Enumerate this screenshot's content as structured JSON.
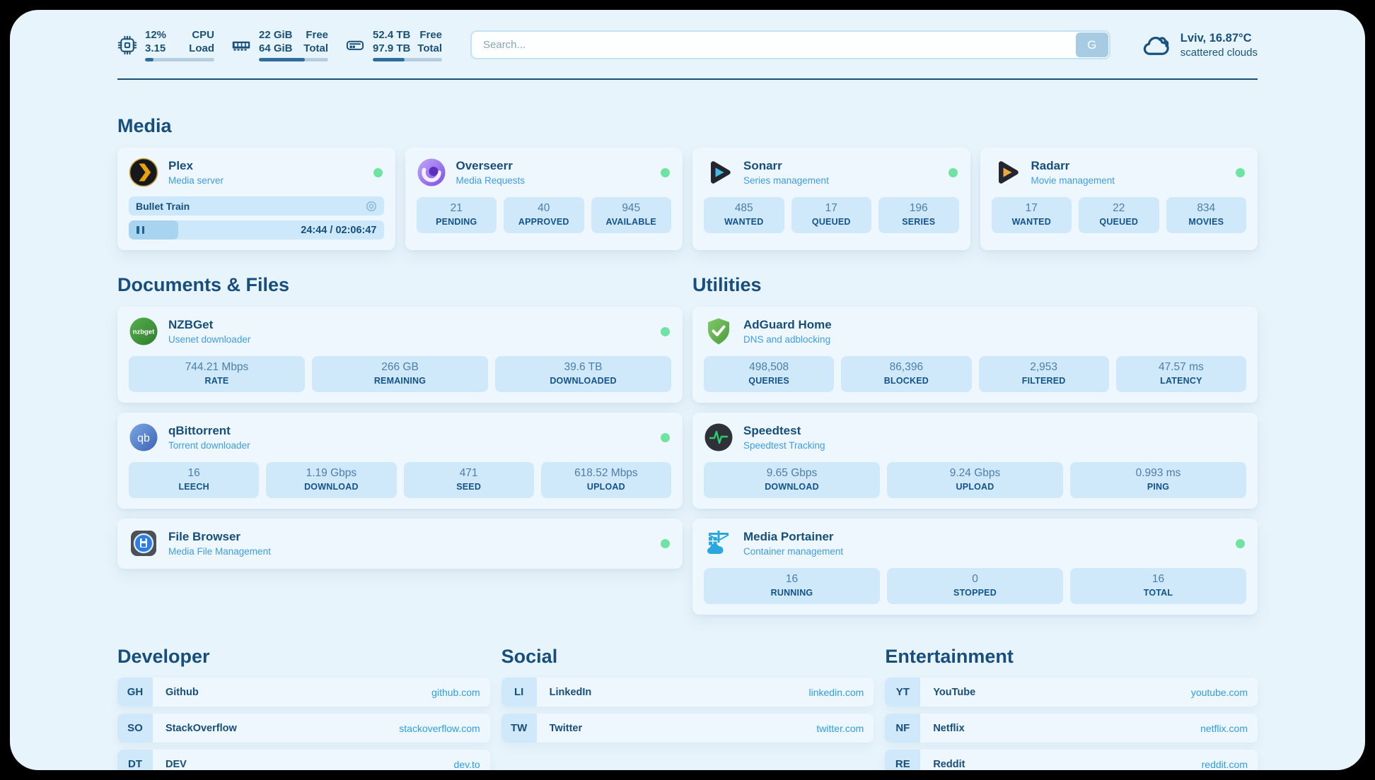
{
  "topbar": {
    "cpu": {
      "percent": "12%",
      "load": "3.15",
      "label_line1": "CPU",
      "label_line2": "Load",
      "progress_pct": 12
    },
    "memory": {
      "free": "22 GiB",
      "total": "64 GiB",
      "label_line1": "Free",
      "label_line2": "Total",
      "progress_pct": 66
    },
    "storage": {
      "free": "52.4 TB",
      "total": "97.9 TB",
      "label_line1": "Free",
      "label_line2": "Total",
      "progress_pct": 46
    },
    "search": {
      "placeholder": "Search...",
      "button_label": "G"
    },
    "weather": {
      "location_temp": "Lviv, 16.87°C",
      "condition": "scattered clouds"
    }
  },
  "media": {
    "heading": "Media",
    "plex": {
      "title": "Plex",
      "subtitle": "Media server",
      "status": "online",
      "now_playing": "Bullet Train",
      "time": "24:44 / 02:06:47",
      "progress_pct": 19.5,
      "playback_state": "paused"
    },
    "overseerr": {
      "title": "Overseerr",
      "subtitle": "Media Requests",
      "status": "online",
      "stats": [
        {
          "value": "21",
          "label": "PENDING"
        },
        {
          "value": "40",
          "label": "APPROVED"
        },
        {
          "value": "945",
          "label": "AVAILABLE"
        }
      ]
    },
    "sonarr": {
      "title": "Sonarr",
      "subtitle": "Series management",
      "status": "online",
      "stats": [
        {
          "value": "485",
          "label": "WANTED"
        },
        {
          "value": "17",
          "label": "QUEUED"
        },
        {
          "value": "196",
          "label": "SERIES"
        }
      ]
    },
    "radarr": {
      "title": "Radarr",
      "subtitle": "Movie management",
      "status": "online",
      "stats": [
        {
          "value": "17",
          "label": "WANTED"
        },
        {
          "value": "22",
          "label": "QUEUED"
        },
        {
          "value": "834",
          "label": "MOVIES"
        }
      ]
    }
  },
  "documents": {
    "heading": "Documents & Files",
    "nzbget": {
      "title": "NZBGet",
      "subtitle": "Usenet downloader",
      "status": "online",
      "stats": [
        {
          "value": "744.21 Mbps",
          "label": "RATE"
        },
        {
          "value": "266 GB",
          "label": "REMAINING"
        },
        {
          "value": "39.6 TB",
          "label": "DOWNLOADED"
        }
      ]
    },
    "qbittorrent": {
      "title": "qBittorrent",
      "subtitle": "Torrent downloader",
      "status": "online",
      "stats": [
        {
          "value": "16",
          "label": "LEECH"
        },
        {
          "value": "1.19 Gbps",
          "label": "DOWNLOAD"
        },
        {
          "value": "471",
          "label": "SEED"
        },
        {
          "value": "618.52 Mbps",
          "label": "UPLOAD"
        }
      ]
    },
    "filebrowser": {
      "title": "File Browser",
      "subtitle": "Media File Management",
      "status": "online"
    }
  },
  "utilities": {
    "heading": "Utilities",
    "adguard": {
      "title": "AdGuard Home",
      "subtitle": "DNS and adblocking",
      "stats": [
        {
          "value": "498,508",
          "label": "QUERIES"
        },
        {
          "value": "86,396",
          "label": "BLOCKED"
        },
        {
          "value": "2,953",
          "label": "FILTERED"
        },
        {
          "value": "47.57 ms",
          "label": "LATENCY"
        }
      ]
    },
    "speedtest": {
      "title": "Speedtest",
      "subtitle": "Speedtest Tracking",
      "stats": [
        {
          "value": "9.65 Gbps",
          "label": "DOWNLOAD"
        },
        {
          "value": "9.24 Gbps",
          "label": "UPLOAD"
        },
        {
          "value": "0.993 ms",
          "label": "PING"
        }
      ]
    },
    "portainer": {
      "title": "Media Portainer",
      "subtitle": "Container management",
      "status": "online",
      "stats": [
        {
          "value": "16",
          "label": "RUNNING"
        },
        {
          "value": "0",
          "label": "STOPPED"
        },
        {
          "value": "16",
          "label": "TOTAL"
        }
      ]
    }
  },
  "links": {
    "developer": {
      "heading": "Developer",
      "items": [
        {
          "abbr": "GH",
          "name": "Github",
          "url": "github.com"
        },
        {
          "abbr": "SO",
          "name": "StackOverflow",
          "url": "stackoverflow.com"
        },
        {
          "abbr": "DT",
          "name": "DEV",
          "url": "dev.to"
        }
      ]
    },
    "social": {
      "heading": "Social",
      "items": [
        {
          "abbr": "LI",
          "name": "LinkedIn",
          "url": "linkedin.com"
        },
        {
          "abbr": "TW",
          "name": "Twitter",
          "url": "twitter.com"
        }
      ]
    },
    "entertainment": {
      "heading": "Entertainment",
      "items": [
        {
          "abbr": "YT",
          "name": "YouTube",
          "url": "youtube.com"
        },
        {
          "abbr": "NF",
          "name": "Netflix",
          "url": "netflix.com"
        },
        {
          "abbr": "RE",
          "name": "Reddit",
          "url": "reddit.com"
        }
      ]
    }
  },
  "colors": {
    "panel_bg": "#e8f4fc",
    "card_bg": "#eef7fd",
    "stat_box_bg": "#cfe9fb",
    "accent_navy": "#174e7c",
    "subtitle_blue": "#3e9ce9",
    "link_blue": "#2d9ceb",
    "status_green": "#6fe3a1",
    "progress_fill": "#2e6d9d"
  }
}
